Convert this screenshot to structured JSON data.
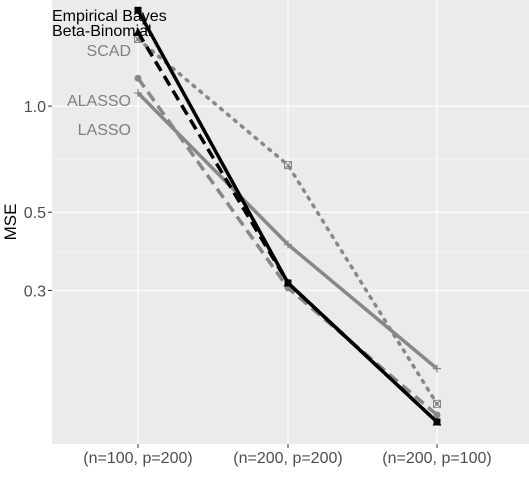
{
  "chart_data": {
    "type": "line",
    "title": "",
    "xlabel": "",
    "ylabel": "MSE",
    "yscale": "log",
    "ylim": [
      0.11,
      2.0
    ],
    "grid": true,
    "legend": "none",
    "categories": [
      "(n=100, p=200)",
      "(n=200, p=200)",
      "(n=200, p=100)"
    ],
    "yticks": [
      {
        "value": 1.0,
        "label": "1.0"
      },
      {
        "value": 0.5,
        "label": "0.5"
      },
      {
        "value": 0.3,
        "label": "0.3"
      }
    ],
    "series": [
      {
        "name": "Empirical Bayes",
        "values": [
          1.87,
          0.315,
          0.127
        ],
        "color": "#000000",
        "style": "solid",
        "width": 3.5,
        "marker": "square"
      },
      {
        "name": "Beta-Binomial",
        "values": [
          1.62,
          0.315,
          0.127
        ],
        "color": "#000000",
        "style": "dashed",
        "width": 3.5,
        "marker": "triangle"
      },
      {
        "name": "SCAD",
        "values": [
          1.55,
          0.68,
          0.143
        ],
        "color": "#888888",
        "style": "dotted",
        "width": 3.5,
        "marker": "boxcross"
      },
      {
        "name": "ALASSO",
        "values": [
          1.2,
          0.305,
          0.133
        ],
        "color": "#888888",
        "style": "dashed",
        "width": 3.5,
        "marker": "circle"
      },
      {
        "name": "LASSO",
        "values": [
          1.09,
          0.405,
          0.18
        ],
        "color": "#888888",
        "style": "solid",
        "width": 3.5,
        "marker": "plus"
      }
    ]
  }
}
